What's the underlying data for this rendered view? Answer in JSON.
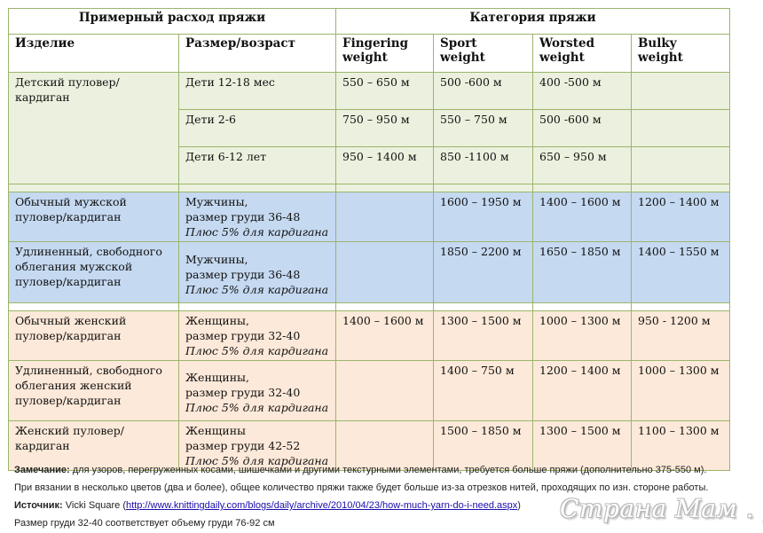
{
  "header": {
    "left_title": "Примерный расход пряжи",
    "right_title": "Категория пряжи"
  },
  "columns": {
    "item": "Изделие",
    "size": "Размер/возраст",
    "fingering": "Fingering weight",
    "sport": "Sport weight",
    "worsted": "Worsted weight",
    "bulky": "Bulky weight"
  },
  "kids": {
    "item": "Детский пуловер/кардиган",
    "rows": [
      {
        "size": "Дети 12-18 мес",
        "fingering": "550 – 650 м",
        "sport": "500 -600 м",
        "worsted": "400 -500 м",
        "bulky": ""
      },
      {
        "size": "Дети 2-6",
        "fingering": "750 – 950 м",
        "sport": "550 – 750 м",
        "worsted": "500 -600 м",
        "bulky": ""
      },
      {
        "size": "Дети 6-12 лет",
        "fingering": "950 – 1400 м",
        "sport": "850 -1100 м",
        "worsted": "650 – 950 м",
        "bulky": ""
      }
    ]
  },
  "men": [
    {
      "item": "Обычный мужской пуловер/кардиган",
      "size_line1": "Мужчины,",
      "size_line2": "размер груди 36-48",
      "size_note": "Плюс 5% для кардигана",
      "fingering": "",
      "sport": "1600 – 1950 м",
      "worsted": "1400 – 1600 м",
      "bulky": "1200 – 1400 м"
    },
    {
      "item": "Удлиненный, свободного облегания мужской пуловер/кардиган",
      "size_line1": "Мужчины,",
      "size_line2": "размер груди 36-48",
      "size_note": "Плюс 5% для кардигана",
      "fingering": "",
      "sport": "1850 – 2200 м",
      "worsted": "1650 – 1850 м",
      "bulky": "1400 – 1550 м"
    }
  ],
  "women": [
    {
      "item": "Обычный женский пуловер/кардиган",
      "size_line1": "Женщины,",
      "size_line2": "размер груди 32-40",
      "size_note": "Плюс 5% для кардигана",
      "fingering": "1400 – 1600 м",
      "sport": "1300 – 1500 м",
      "worsted": "1000 – 1300 м",
      "bulky": "950 - 1200 м"
    },
    {
      "item": "Удлиненный, свободного облегания женский пуловер/кардиган",
      "size_line1": "Женщины,",
      "size_line2": "размер груди 32-40",
      "size_note": "Плюс 5% для кардигана",
      "fingering": "",
      "sport": "1400 – 750 м",
      "worsted": "1200 – 1400 м",
      "bulky": "1000 – 1300 м"
    },
    {
      "item": "Женский пуловер/кардиган",
      "size_line1": "Женщины",
      "size_line2": "размер груди 42-52",
      "size_note": "Плюс 5% для кардигана",
      "fingering": "",
      "sport": "1500 – 1850 м",
      "worsted": "1300 – 1500 м",
      "bulky": "1100 – 1300 м"
    }
  ],
  "notes": {
    "remark_label": "Замечание:",
    "remark_text": " для узоров, перегруженных косами, шишечками и другими текстурными элементами, требуется больше пряжи (дополнительно 375-550 м).",
    "line2": "При вязании в несколько цветов (два и более), общее количество пряжи также будет больше из-за отрезков нитей, проходящих по изн. стороне работы.",
    "source_label": "Источник:",
    "source_name": " Vicki Square (",
    "source_url": "http://www.knittingdaily.com/blogs/daily/archive/2010/04/23/how-much-yarn-do-i-need.aspx",
    "source_close": ")",
    "line4": "Размер груди 32-40 соответствует  объему груди 76-92 см"
  },
  "watermark": "Страна Мам . ру",
  "colors": {
    "border": "#9bb56b",
    "kids_bg": "#ebf1de",
    "men_bg": "#c5d9f1",
    "women_bg": "#fde9d9",
    "link": "#1a0dab"
  }
}
